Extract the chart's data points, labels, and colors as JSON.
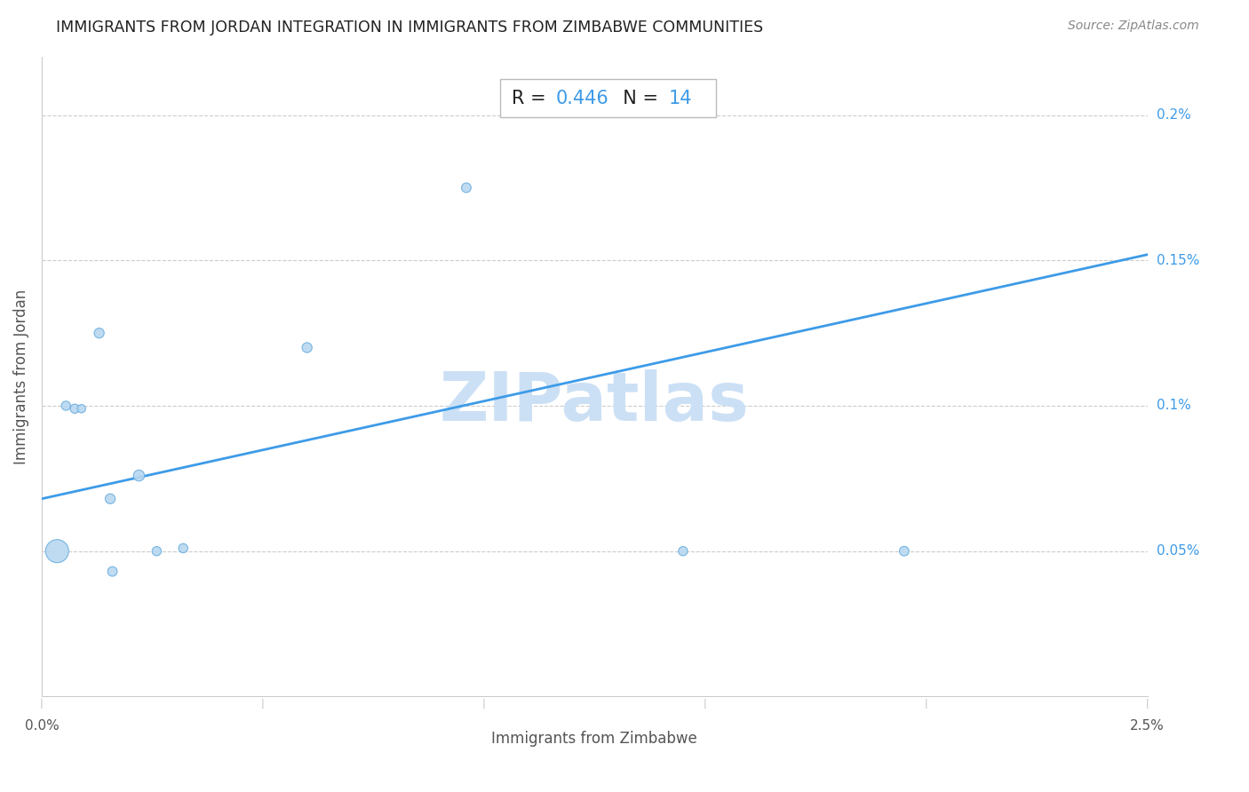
{
  "title": "IMMIGRANTS FROM JORDAN INTEGRATION IN IMMIGRANTS FROM ZIMBABWE COMMUNITIES",
  "source": "Source: ZipAtlas.com",
  "xlabel": "Immigrants from Zimbabwe",
  "ylabel": "Immigrants from Jordan",
  "R_label": "R = ",
  "R_value": "0.446",
  "N_label": "  N = ",
  "N_value": "14",
  "watermark": "ZIPatlas",
  "xlim": [
    0,
    0.025
  ],
  "ylim": [
    0,
    0.022
  ],
  "ytick_positions": [
    0.005,
    0.01,
    0.015,
    0.02
  ],
  "yticklabels_right": [
    "0.05%",
    "0.1%",
    "0.15%",
    "0.2%"
  ],
  "scatter_x": [
    0.00035,
    0.00055,
    0.00075,
    0.0009,
    0.0013,
    0.00155,
    0.0016,
    0.0022,
    0.0026,
    0.0032,
    0.006,
    0.0096,
    0.0145,
    0.0195
  ],
  "scatter_y": [
    0.005,
    0.01,
    0.0099,
    0.0099,
    0.0125,
    0.0068,
    0.0043,
    0.0076,
    0.005,
    0.0051,
    0.012,
    0.0175,
    0.005,
    0.005
  ],
  "scatter_sizes": [
    350,
    55,
    55,
    45,
    65,
    65,
    60,
    80,
    55,
    55,
    65,
    60,
    55,
    60
  ],
  "dot_color": "#b8d8f0",
  "dot_edge_color": "#6aaee0",
  "line_color": "#3d9be8",
  "line_x": [
    0.0,
    0.025
  ],
  "line_y_start": 0.0068,
  "line_y_end": 0.0152,
  "title_fontsize": 12.5,
  "source_fontsize": 10,
  "label_fontsize": 12,
  "annotation_fontsize": 15,
  "watermark_color": "#cce0f5",
  "watermark_fontsize": 55,
  "grid_color": "#cccccc",
  "grid_linestyle": "--",
  "background_color": "#ffffff",
  "spine_color": "#cccccc",
  "tick_label_color": "#555555",
  "ylabel_color": "#555555",
  "xlabel_color": "#555555"
}
